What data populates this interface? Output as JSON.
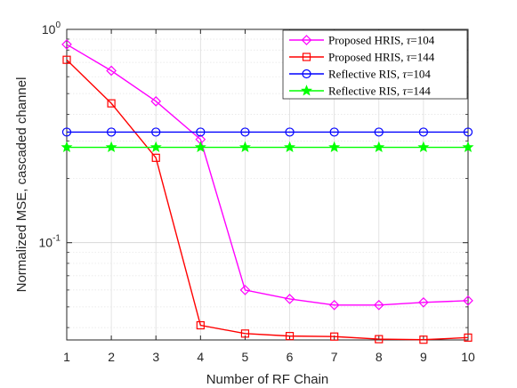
{
  "chart_data": {
    "type": "line",
    "xlabel": "Number of RF Chain",
    "ylabel": "Normalized MSE, cascaded channel",
    "x": [
      1,
      2,
      3,
      4,
      5,
      6,
      7,
      8,
      9,
      10
    ],
    "xlim": [
      1,
      10
    ],
    "ylim": [
      0.035,
      1
    ],
    "yscale": "log",
    "grid": true,
    "legend_position": "top-right",
    "x_ticks": [
      "1",
      "2",
      "3",
      "4",
      "5",
      "6",
      "7",
      "8",
      "9",
      "10"
    ],
    "y_ticks": [
      {
        "value": 0.1,
        "base": "10",
        "exp": "-1"
      },
      {
        "value": 1,
        "base": "10",
        "exp": "0"
      }
    ],
    "series": [
      {
        "name": "Proposed HRIS, τ=104",
        "legend_label": "Proposed HRIS, ",
        "legend_tau": "τ",
        "legend_value": "=104",
        "color": "#ff00ff",
        "marker": "diamond",
        "values": [
          0.85,
          0.64,
          0.46,
          0.305,
          0.06,
          0.0545,
          0.051,
          0.051,
          0.0525,
          0.0535
        ]
      },
      {
        "name": "Proposed HRIS, τ=144",
        "legend_label": "Proposed HRIS, ",
        "legend_tau": "τ",
        "legend_value": "=144",
        "color": "#ff0000",
        "marker": "square",
        "values": [
          0.72,
          0.45,
          0.25,
          0.041,
          0.0375,
          0.0365,
          0.0363,
          0.0353,
          0.0351,
          0.0359
        ]
      },
      {
        "name": "Reflective RIS, τ=104",
        "legend_label": "Reflective RIS, ",
        "legend_tau": "τ",
        "legend_value": "=104",
        "color": "#0000ff",
        "marker": "circle",
        "values": [
          0.33,
          0.33,
          0.33,
          0.33,
          0.33,
          0.33,
          0.33,
          0.33,
          0.33,
          0.33
        ]
      },
      {
        "name": "Reflective RIS, τ=144",
        "legend_label": "Reflective RIS, ",
        "legend_tau": "τ",
        "legend_value": "=144",
        "color": "#00ff00",
        "marker": "star",
        "values": [
          0.28,
          0.28,
          0.28,
          0.28,
          0.28,
          0.28,
          0.28,
          0.28,
          0.28,
          0.28
        ]
      }
    ]
  }
}
